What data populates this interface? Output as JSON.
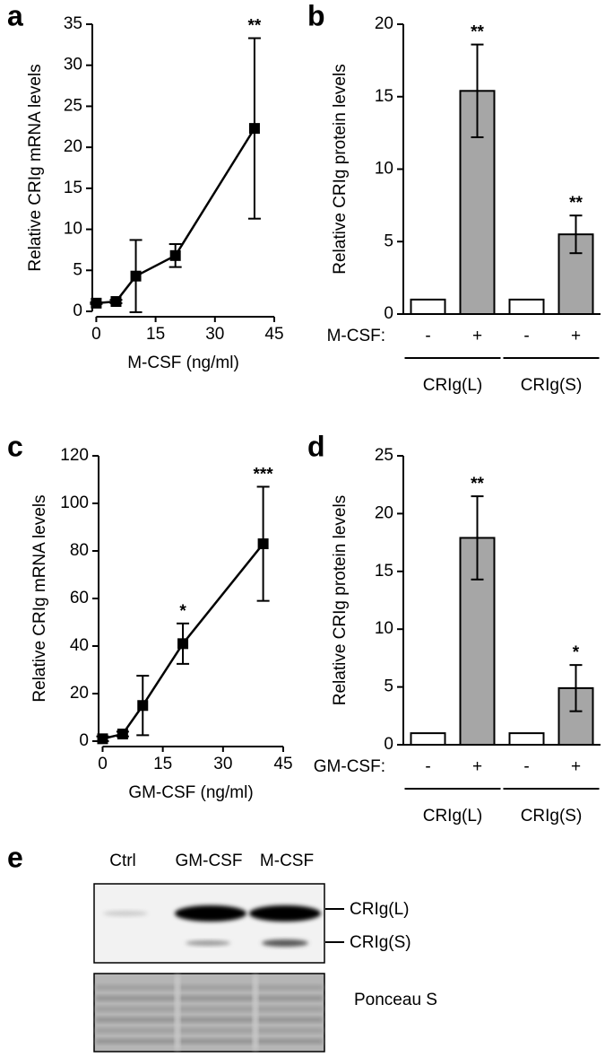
{
  "chart_data": [
    {
      "type": "line",
      "panel": "a",
      "x": [
        0,
        5,
        10,
        20,
        40
      ],
      "values": [
        1,
        1.2,
        4.3,
        6.8,
        22.3
      ],
      "errors": [
        0.1,
        0.2,
        4.4,
        1.4,
        11
      ],
      "annotations": [
        null,
        null,
        null,
        null,
        "**"
      ],
      "color": "#000000",
      "xlim": [
        -1,
        45
      ],
      "xticks": [
        0,
        15,
        30,
        45
      ],
      "ylim": [
        0,
        35
      ],
      "yticks": [
        0,
        5,
        10,
        15,
        20,
        25,
        30,
        35
      ],
      "xlabel": "M-CSF (ng/ml)",
      "ylabel": "Relative CRIg mRNA levels"
    },
    {
      "type": "bar",
      "panel": "b",
      "values": [
        1,
        15.4,
        1,
        5.5
      ],
      "errors": [
        0,
        3.2,
        0,
        1.3
      ],
      "annotations": [
        null,
        "**",
        null,
        "**"
      ],
      "colors": [
        "#ffffff",
        "#a6a6a6",
        "#ffffff",
        "#a6a6a6"
      ],
      "ylim": [
        0,
        20
      ],
      "yticks": [
        0,
        5,
        10,
        15,
        20
      ],
      "ylabel": "Relative CRIg protein levels",
      "row_label": "M-CSF:",
      "treatment": [
        "-",
        "+",
        "-",
        "+"
      ],
      "groups": [
        "CRIg(L)",
        "CRIg(S)"
      ]
    },
    {
      "type": "line",
      "panel": "c",
      "x": [
        0,
        5,
        10,
        20,
        40
      ],
      "values": [
        1,
        3,
        15,
        41,
        83
      ],
      "errors": [
        1,
        1,
        12.5,
        8.5,
        24
      ],
      "annotations": [
        null,
        null,
        null,
        "*",
        "***"
      ],
      "color": "#000000",
      "xlim": [
        -1,
        45
      ],
      "xticks": [
        0,
        15,
        30,
        45
      ],
      "ylim": [
        0,
        120
      ],
      "yticks": [
        0,
        20,
        40,
        60,
        80,
        100,
        120
      ],
      "xlabel": "GM-CSF (ng/ml)",
      "ylabel": "Relative CRIg mRNA levels"
    },
    {
      "type": "bar",
      "panel": "d",
      "values": [
        1,
        17.9,
        1,
        4.9
      ],
      "errors": [
        0,
        3.6,
        0,
        2
      ],
      "annotations": [
        null,
        "**",
        null,
        "*"
      ],
      "colors": [
        "#ffffff",
        "#a6a6a6",
        "#ffffff",
        "#a6a6a6"
      ],
      "ylim": [
        0,
        25
      ],
      "yticks": [
        0,
        5,
        10,
        15,
        20,
        25
      ],
      "ylabel": "Relative CRIg protein levels",
      "row_label": "GM-CSF:",
      "treatment": [
        "-",
        "+",
        "-",
        "+"
      ],
      "groups": [
        "CRIg(L)",
        "CRIg(S)"
      ]
    },
    {
      "type": "blot",
      "panel": "e",
      "categories": [
        "Ctrl",
        "GM-CSF",
        "M-CSF"
      ],
      "band_labels": [
        "CRIg(L)",
        "CRIg(S)"
      ],
      "stain_label": "Ponceau S"
    }
  ]
}
